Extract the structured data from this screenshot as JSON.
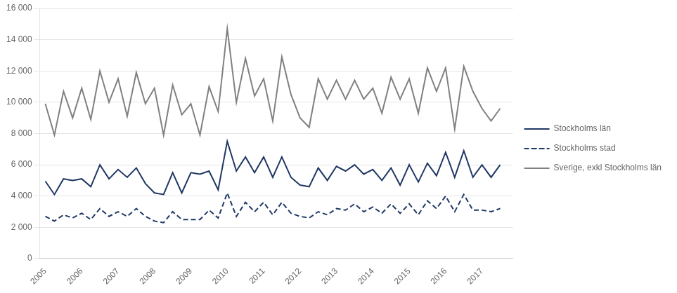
{
  "chart_data": {
    "type": "line",
    "x": [
      2005,
      2005.25,
      2005.5,
      2005.75,
      2006,
      2006.25,
      2006.5,
      2006.75,
      2007,
      2007.25,
      2007.5,
      2007.75,
      2008,
      2008.25,
      2008.5,
      2008.75,
      2009,
      2009.25,
      2009.5,
      2009.75,
      2010,
      2010.25,
      2010.5,
      2010.75,
      2011,
      2011.25,
      2011.5,
      2011.75,
      2012,
      2012.25,
      2012.5,
      2012.75,
      2013,
      2013.25,
      2013.5,
      2013.75,
      2014,
      2014.25,
      2014.5,
      2014.75,
      2015,
      2015.25,
      2015.5,
      2015.75,
      2016,
      2016.25,
      2016.5,
      2016.75,
      2017,
      2017.25,
      2017.5
    ],
    "series": [
      {
        "name": "Stockholms län",
        "color": "#1f3864",
        "line_style": "solid",
        "values": [
          4950,
          4100,
          5100,
          5000,
          5100,
          4600,
          6000,
          5100,
          5700,
          5200,
          5800,
          4800,
          4200,
          4100,
          5500,
          4200,
          5500,
          5400,
          5600,
          4400,
          7500,
          5600,
          6500,
          5500,
          6500,
          5200,
          6500,
          5200,
          4700,
          4600,
          5800,
          5000,
          5900,
          5600,
          6000,
          5400,
          5700,
          5000,
          5800,
          4700,
          6000,
          4900,
          6100,
          5300,
          6800,
          5200,
          6900,
          5200,
          6000,
          5200,
          6000
        ]
      },
      {
        "name": "Stockholms stad",
        "color": "#1f3864",
        "line_style": "dashed",
        "values": [
          2700,
          2400,
          2800,
          2600,
          2900,
          2500,
          3200,
          2700,
          3000,
          2700,
          3200,
          2700,
          2400,
          2300,
          3000,
          2500,
          2500,
          2500,
          3100,
          2600,
          4200,
          2700,
          3600,
          3000,
          3600,
          2800,
          3600,
          2900,
          2700,
          2600,
          3000,
          2800,
          3200,
          3100,
          3500,
          3000,
          3300,
          2900,
          3500,
          2900,
          3500,
          2800,
          3700,
          3200,
          4000,
          3000,
          4100,
          3100,
          3100,
          3000,
          3200
        ]
      },
      {
        "name": "Sverige, exkl Stockholms län",
        "color": "#808080",
        "line_style": "solid",
        "values": [
          9900,
          7900,
          10700,
          9000,
          10900,
          8900,
          12000,
          10000,
          11500,
          9100,
          11900,
          9900,
          10900,
          7900,
          11100,
          9200,
          9900,
          7900,
          11000,
          9400,
          14700,
          10000,
          12800,
          10400,
          11500,
          8800,
          12900,
          10500,
          9000,
          8400,
          11500,
          10200,
          11400,
          10200,
          11400,
          10200,
          10900,
          9300,
          11600,
          10200,
          11500,
          9300,
          12200,
          10700,
          12200,
          8300,
          12300,
          10700,
          9600,
          8800,
          9600
        ]
      }
    ],
    "xlim": [
      2004.85,
      2017.85
    ],
    "xticks": [
      2005,
      2006,
      2007,
      2008,
      2009,
      2010,
      2011,
      2012,
      2013,
      2014,
      2015,
      2016,
      2017
    ],
    "ylim": [
      0,
      16000
    ],
    "yticks": [
      0,
      {
        "value": 2000,
        "label": "2 000"
      },
      {
        "value": 4000,
        "label": "4 000"
      },
      {
        "value": 6000,
        "label": "6 000"
      },
      {
        "value": 8000,
        "label": "8 000"
      },
      {
        "value": 10000,
        "label": "10 000"
      },
      {
        "value": 12000,
        "label": "12 000"
      },
      {
        "value": 14000,
        "label": "14 000"
      },
      {
        "value": 16000,
        "label": "16 000"
      }
    ],
    "grid": "y",
    "legend": "right"
  }
}
